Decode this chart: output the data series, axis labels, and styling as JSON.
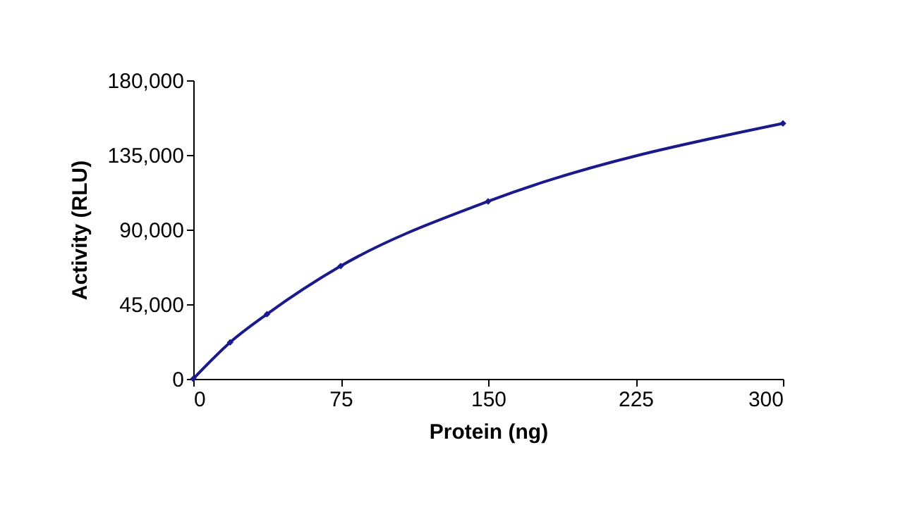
{
  "chart_data": {
    "type": "line",
    "xlabel": "Protein (ng)",
    "ylabel": "Activity (RLU)",
    "x": [
      0,
      18.75,
      37.5,
      75,
      150,
      300
    ],
    "series": [
      {
        "color": "#1a1a8c",
        "values": [
          0,
          22000,
          39000,
          68000,
          107000,
          154000
        ]
      }
    ],
    "xlim": [
      0,
      300
    ],
    "xticks": [
      0,
      75,
      150,
      225,
      300
    ],
    "ylim": [
      0,
      180000
    ],
    "yticks": [
      0,
      {
        "value": 45000,
        "label": "45,000"
      },
      {
        "value": 90000,
        "label": "90,000"
      },
      {
        "value": 135000,
        "label": "135,000"
      },
      {
        "value": 180000,
        "label": "180,000"
      }
    ],
    "grid": false,
    "marker": "diamond",
    "line_style": "solid"
  }
}
